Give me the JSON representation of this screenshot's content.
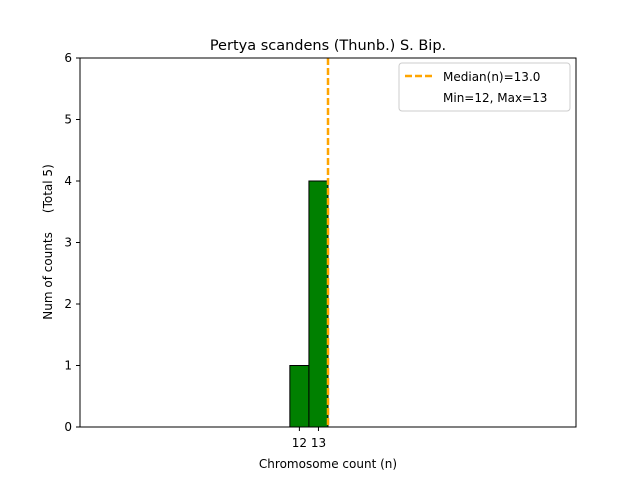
{
  "chart_data": {
    "type": "bar",
    "title": "Pertya scandens (Thunb.) S. Bip.",
    "xlabel": "Chromosome count (n)",
    "ylabel": "Num of counts     (Total 5)",
    "x": [
      12,
      13
    ],
    "values": [
      1,
      4
    ],
    "xlim": [
      0,
      26
    ],
    "ylim": [
      0,
      6
    ],
    "yticks": [
      0,
      1,
      2,
      3,
      4,
      5,
      6
    ],
    "xtick_labels": [
      "12",
      "13"
    ],
    "median": 13.0,
    "legend": {
      "position": "top-right",
      "entries": [
        "Median(n)=13.0",
        "Min=12, Max=13"
      ]
    },
    "grid": false,
    "colors": {
      "bar": "#008000",
      "bar_edge": "#000000",
      "median": "#FFA500"
    }
  }
}
